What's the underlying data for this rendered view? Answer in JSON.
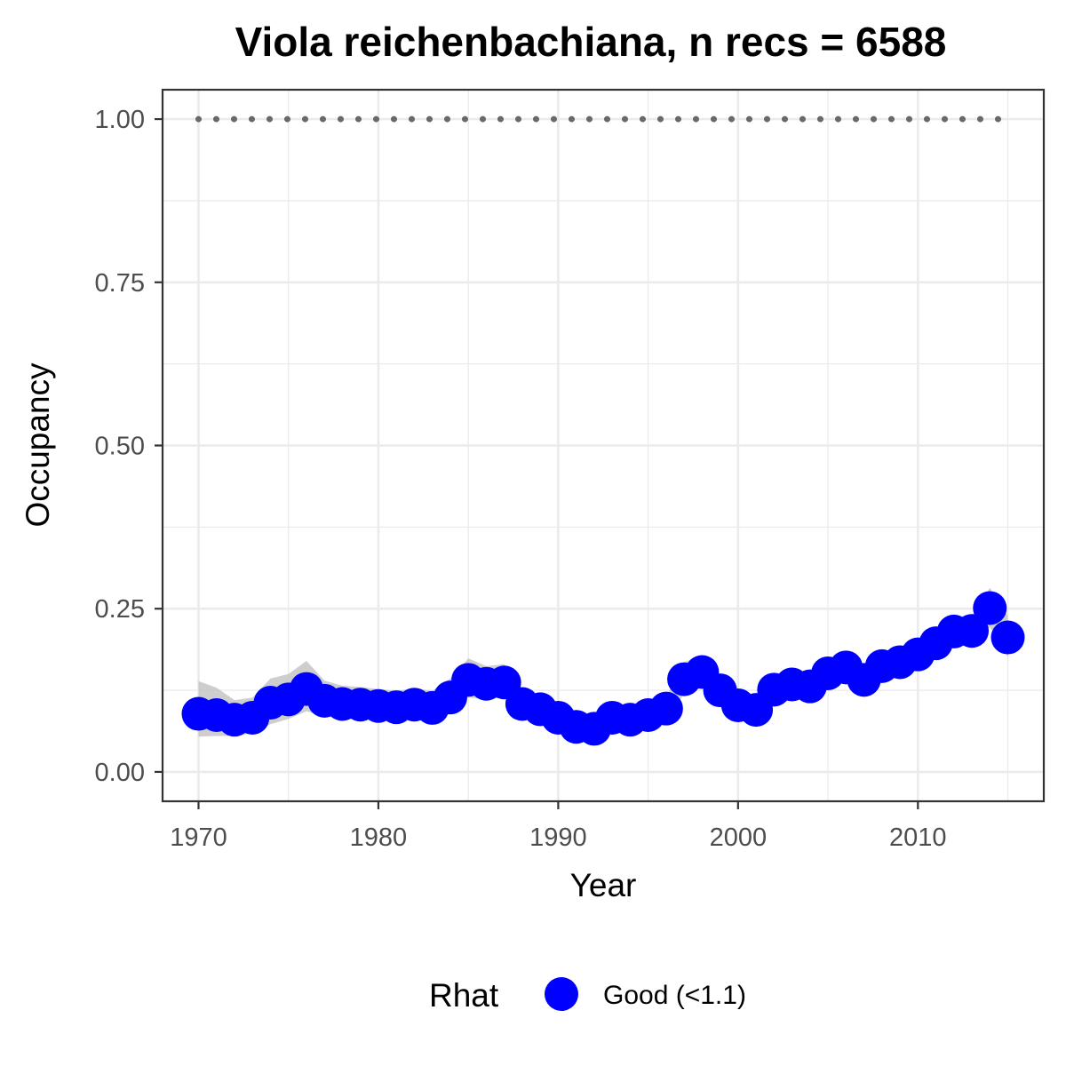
{
  "chart_data": {
    "type": "scatter",
    "title": "Viola reichenbachiana, n recs = 6588",
    "xlabel": "Year",
    "ylabel": "Occupancy",
    "xlim": [
      1968,
      2017
    ],
    "ylim": [
      -0.045,
      1.045
    ],
    "x_ticks": [
      1970,
      1980,
      1990,
      2000,
      2010
    ],
    "x_tick_labels": [
      "1970",
      "1980",
      "1990",
      "2000",
      "2010"
    ],
    "y_ticks": [
      0,
      0.25,
      0.5,
      0.75,
      1.0
    ],
    "y_tick_labels": [
      "0.00",
      "0.25",
      "0.50",
      "0.75",
      "1.00"
    ],
    "grid": true,
    "legend": {
      "title": "Rhat",
      "position": "bottom",
      "entries": [
        {
          "label": "Good (<1.1)",
          "color": "#0000ff"
        }
      ]
    },
    "colors": {
      "points": "#0000ff",
      "ribbon": "#bebebe",
      "reference": "#696969",
      "grid": "#ebebeb",
      "panel_border": "#333333",
      "tick_label": "#4d4d4d"
    },
    "reference_line": {
      "y": 1.0,
      "style": "dotted"
    },
    "series": [
      {
        "x": [
          1970,
          1971,
          1972,
          1973,
          1974,
          1975,
          1976,
          1977,
          1978,
          1979,
          1980,
          1981,
          1982,
          1983,
          1984,
          1985,
          1986,
          1987,
          1988,
          1989,
          1990,
          1991,
          1992,
          1993,
          1994,
          1995,
          1996,
          1997,
          1998,
          1999,
          2000,
          2001,
          2002,
          2003,
          2004,
          2005,
          2006,
          2007,
          2008,
          2009,
          2010,
          2011,
          2012,
          2013,
          2014,
          2015
        ],
        "y": [
          0.089,
          0.087,
          0.08,
          0.083,
          0.106,
          0.111,
          0.127,
          0.109,
          0.104,
          0.103,
          0.101,
          0.099,
          0.103,
          0.098,
          0.114,
          0.141,
          0.135,
          0.137,
          0.104,
          0.096,
          0.083,
          0.069,
          0.066,
          0.083,
          0.08,
          0.087,
          0.097,
          0.142,
          0.153,
          0.125,
          0.102,
          0.095,
          0.126,
          0.134,
          0.131,
          0.151,
          0.16,
          0.141,
          0.162,
          0.168,
          0.18,
          0.197,
          0.215,
          0.216,
          0.251,
          0.206
        ],
        "lower": [
          0.054,
          0.055,
          0.055,
          0.059,
          0.073,
          0.081,
          0.093,
          0.085,
          0.081,
          0.081,
          0.08,
          0.08,
          0.081,
          0.077,
          0.09,
          0.114,
          0.111,
          0.114,
          0.086,
          0.078,
          0.068,
          0.057,
          0.055,
          0.069,
          0.067,
          0.074,
          0.082,
          0.119,
          0.129,
          0.104,
          0.085,
          0.079,
          0.106,
          0.115,
          0.113,
          0.131,
          0.14,
          0.124,
          0.143,
          0.15,
          0.161,
          0.177,
          0.194,
          0.194,
          0.222,
          0.176
        ],
        "upper": [
          0.139,
          0.129,
          0.11,
          0.114,
          0.143,
          0.15,
          0.17,
          0.14,
          0.132,
          0.13,
          0.127,
          0.124,
          0.128,
          0.124,
          0.143,
          0.174,
          0.162,
          0.165,
          0.127,
          0.117,
          0.101,
          0.084,
          0.081,
          0.099,
          0.096,
          0.103,
          0.115,
          0.168,
          0.179,
          0.149,
          0.123,
          0.114,
          0.148,
          0.155,
          0.151,
          0.173,
          0.182,
          0.161,
          0.183,
          0.188,
          0.201,
          0.218,
          0.238,
          0.239,
          0.282,
          0.24
        ]
      }
    ]
  }
}
